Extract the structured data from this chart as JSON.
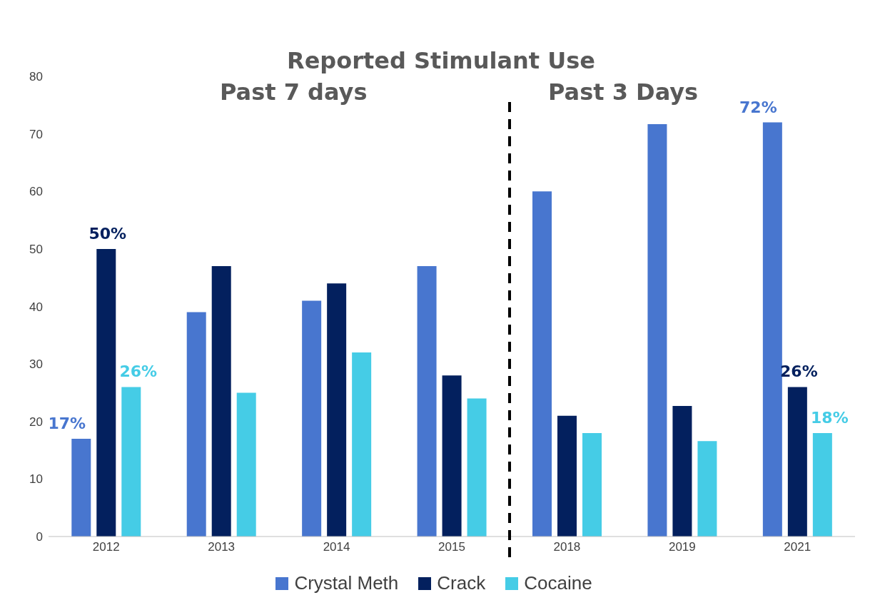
{
  "chart_data": {
    "type": "bar",
    "title": "Reported Stimulant Use",
    "annotations": [
      "Past 7 days",
      "Past 3 Days"
    ],
    "categories": [
      "2012",
      "2013",
      "2014",
      "2015",
      "2018",
      "2019",
      "2021"
    ],
    "series": [
      {
        "name": "Crystal Meth",
        "color": "#4876cf",
        "values": [
          17,
          39,
          41,
          47,
          60,
          71.7,
          72
        ],
        "value_labels": [
          "17%",
          null,
          null,
          null,
          null,
          null,
          "72%"
        ]
      },
      {
        "name": "Crack",
        "color": "#03205e",
        "values": [
          50,
          47,
          44,
          28,
          21,
          22.7,
          26
        ],
        "value_labels": [
          "50%",
          null,
          null,
          null,
          null,
          null,
          "26%"
        ]
      },
      {
        "name": "Cocaine",
        "color": "#45cce6",
        "values": [
          26,
          25,
          32,
          24,
          18,
          16.6,
          18
        ],
        "value_labels": [
          "26%",
          null,
          null,
          null,
          null,
          null,
          "18%"
        ]
      }
    ],
    "ylim": [
      0,
      80
    ],
    "yticks": [
      0,
      10,
      20,
      30,
      40,
      50,
      60,
      70,
      80
    ],
    "grid": false,
    "legend": "bottom"
  }
}
